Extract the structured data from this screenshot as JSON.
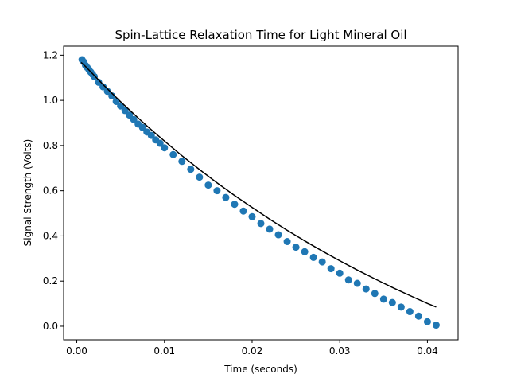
{
  "chart_data": {
    "type": "scatter",
    "title": "Spin-Lattice Relaxation Time for Light Mineral Oil",
    "xlabel": "Time (seconds)",
    "ylabel": "Signal Strength (Volts)",
    "xlim": [
      -0.0015,
      0.0435
    ],
    "ylim": [
      -0.06,
      1.24
    ],
    "xticks": [
      0.0,
      0.01,
      0.02,
      0.03,
      0.04
    ],
    "xtick_labels": [
      "0.00",
      "0.01",
      "0.02",
      "0.03",
      "0.04"
    ],
    "yticks": [
      0.0,
      0.2,
      0.4,
      0.6,
      0.8,
      1.0,
      1.2
    ],
    "ytick_labels": [
      "0.0",
      "0.2",
      "0.4",
      "0.6",
      "0.8",
      "1.0",
      "1.2"
    ],
    "grid": false,
    "colors": {
      "points": "#1f77b4",
      "fit": "#000000"
    },
    "series": [
      {
        "kind": "points",
        "x": [
          0.0006,
          0.0008,
          0.001,
          0.0012,
          0.0014,
          0.0016,
          0.0018,
          0.002,
          0.0025,
          0.003,
          0.0035,
          0.004,
          0.0045,
          0.005,
          0.0055,
          0.006,
          0.0065,
          0.007,
          0.0075,
          0.008,
          0.0085,
          0.009,
          0.0095,
          0.01,
          0.011,
          0.012,
          0.013,
          0.014,
          0.015,
          0.016,
          0.017,
          0.018,
          0.019,
          0.02,
          0.021,
          0.022,
          0.023,
          0.024,
          0.025,
          0.026,
          0.027,
          0.028,
          0.029,
          0.03,
          0.031,
          0.032,
          0.033,
          0.034,
          0.035,
          0.036,
          0.037,
          0.038,
          0.039,
          0.04,
          0.041
        ],
        "y": [
          1.18,
          1.17,
          1.155,
          1.145,
          1.135,
          1.125,
          1.115,
          1.105,
          1.08,
          1.06,
          1.04,
          1.02,
          0.995,
          0.975,
          0.955,
          0.935,
          0.915,
          0.895,
          0.88,
          0.86,
          0.845,
          0.825,
          0.81,
          0.79,
          0.76,
          0.73,
          0.695,
          0.66,
          0.625,
          0.6,
          0.57,
          0.54,
          0.51,
          0.485,
          0.455,
          0.43,
          0.405,
          0.375,
          0.35,
          0.33,
          0.305,
          0.285,
          0.255,
          0.235,
          0.205,
          0.19,
          0.165,
          0.145,
          0.12,
          0.105,
          0.085,
          0.065,
          0.045,
          0.02,
          0.005
        ]
      },
      {
        "kind": "fit-line",
        "x": [
          0.0005,
          0.001,
          0.002,
          0.003,
          0.004,
          0.005,
          0.006,
          0.007,
          0.008,
          0.009,
          0.01,
          0.012,
          0.014,
          0.016,
          0.018,
          0.02,
          0.022,
          0.024,
          0.026,
          0.028,
          0.03,
          0.032,
          0.034,
          0.036,
          0.038,
          0.04,
          0.041
        ],
        "y": [
          1.168,
          1.15,
          1.11,
          1.07,
          1.032,
          0.994,
          0.958,
          0.922,
          0.887,
          0.853,
          0.82,
          0.755,
          0.694,
          0.635,
          0.579,
          0.526,
          0.474,
          0.425,
          0.378,
          0.333,
          0.29,
          0.249,
          0.21,
          0.172,
          0.136,
          0.101,
          0.085
        ]
      }
    ]
  }
}
